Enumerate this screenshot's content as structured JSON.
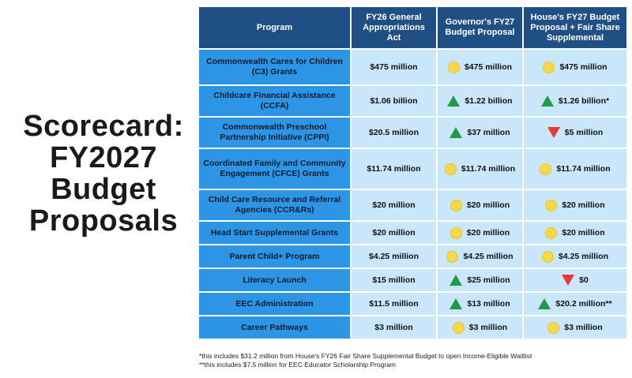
{
  "title_lines": [
    "Scorecard:",
    "FY2027",
    "Budget",
    "Proposals"
  ],
  "headers": [
    "Program",
    "FY26 General Appropriations Act",
    "Governor's FY27 Budget Proposal",
    "House's FY27 Budget Proposal + Fair Share Supplemental"
  ],
  "rows": [
    {
      "program": "Commonwealth Cares for Children (C3) Grants",
      "fy26": "$475 million",
      "gov": "$475 million",
      "gov_ind": "neutral",
      "house": "$475 million",
      "house_ind": "neutral"
    },
    {
      "program": "Childcare Financial Assistance (CCFA)",
      "fy26": "$1.06 billion",
      "gov": "$1.22 billion",
      "gov_ind": "up",
      "house": "$1.26 billion*",
      "house_ind": "up"
    },
    {
      "program": "Commonwealth Preschool Partnership Initiative (CPPI)",
      "fy26": "$20.5 million",
      "gov": "$37 million",
      "gov_ind": "up",
      "house": "$5 million",
      "house_ind": "down"
    },
    {
      "program": "Coordinated Family and Community Engagement (CFCE) Grants",
      "fy26": "$11.74 million",
      "gov": "$11.74 million",
      "gov_ind": "neutral",
      "house": "$11.74 million",
      "house_ind": "neutral"
    },
    {
      "program": "Child Care Resource and Referral Agencies (CCR&Rs)",
      "fy26": "$20 million",
      "gov": "$20 million",
      "gov_ind": "neutral",
      "house": "$20 million",
      "house_ind": "neutral"
    },
    {
      "program": "Head Start Supplemental Grants",
      "fy26": "$20 million",
      "gov": "$20 million",
      "gov_ind": "neutral",
      "house": "$20 million",
      "house_ind": "neutral"
    },
    {
      "program": "Parent Child+ Program",
      "fy26": "$4.25 million",
      "gov": "$4.25 million",
      "gov_ind": "neutral",
      "house": "$4.25 million",
      "house_ind": "neutral"
    },
    {
      "program": "Literacy Launch",
      "fy26": "$15 million",
      "gov": "$25 million",
      "gov_ind": "up",
      "house": "$0",
      "house_ind": "down"
    },
    {
      "program": "EEC Administration",
      "fy26": "$11.5 million",
      "gov": "$13 million",
      "gov_ind": "up",
      "house": "$20.2 million**",
      "house_ind": "up"
    },
    {
      "program": "Career Pathways",
      "fy26": "$3 million",
      "gov": "$3 million",
      "gov_ind": "neutral",
      "house": "$3 million",
      "house_ind": "neutral"
    }
  ],
  "footnotes": [
    "*this includes $31.2 million from House's FY26 Fair Share Supplemental Budget to open Income-Eligible Waitlist",
    "**this includes $7.5 million for EEC Educator Scholarship Program"
  ],
  "colors": {
    "header_bg": "#1f4f85",
    "program_bg": "#2c95e6",
    "value_bg": "#c9e6fb",
    "increase": "#1f9a48",
    "decrease": "#e53935",
    "no_change": "#f7d84a"
  }
}
